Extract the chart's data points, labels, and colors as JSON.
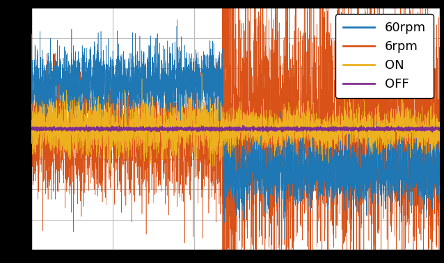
{
  "legend_labels": [
    "60rpm",
    "6rpm",
    "ON",
    "OFF"
  ],
  "colors": {
    "60rpm": "#1f77b4",
    "6rpm": "#d95319",
    "ON": "#edb120",
    "OFF": "#7e2f8e"
  },
  "n_points": 5000,
  "transition_point": 0.47,
  "ylim": [
    -1.0,
    1.0
  ],
  "xlim": [
    0,
    1
  ],
  "background_color": "#ffffff",
  "outer_background": "#000000",
  "grid_color": "#bbbbbb",
  "legend_fontsize": 13,
  "linewidth_signal": 0.4,
  "linewidth_legend": 2.0,
  "figsize": [
    6.38,
    3.78
  ],
  "dpi": 100
}
